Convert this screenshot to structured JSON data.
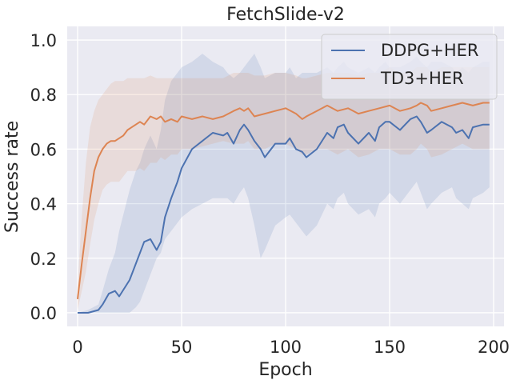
{
  "chart_data": {
    "type": "line",
    "title": "FetchSlide-v2",
    "xlabel": "Epoch",
    "ylabel": "Success rate",
    "xlim": [
      -5,
      205
    ],
    "ylim": [
      -0.05,
      1.05
    ],
    "xticks": [
      0,
      50,
      100,
      150,
      200
    ],
    "yticks": [
      0.0,
      0.2,
      0.4,
      0.6,
      0.8,
      1.0
    ],
    "xtick_labels": [
      "0",
      "50",
      "100",
      "150",
      "200"
    ],
    "ytick_labels": [
      "0.0",
      "0.2",
      "0.4",
      "0.6",
      "0.8",
      "1.0"
    ],
    "grid": true,
    "legend_position": "top-right",
    "series": [
      {
        "name": "DDPG+HER",
        "color": "#4c72b0",
        "x": [
          0,
          5,
          10,
          12,
          15,
          18,
          20,
          25,
          28,
          30,
          32,
          35,
          38,
          40,
          42,
          45,
          48,
          50,
          55,
          60,
          65,
          70,
          72,
          75,
          78,
          80,
          82,
          85,
          88,
          90,
          95,
          100,
          102,
          105,
          108,
          110,
          115,
          120,
          123,
          125,
          128,
          130,
          135,
          140,
          143,
          145,
          148,
          150,
          155,
          160,
          163,
          165,
          168,
          170,
          175,
          180,
          182,
          185,
          188,
          190,
          195,
          198
        ],
        "y": [
          0.0,
          0.0,
          0.01,
          0.03,
          0.07,
          0.08,
          0.06,
          0.12,
          0.18,
          0.22,
          0.26,
          0.27,
          0.23,
          0.26,
          0.35,
          0.42,
          0.48,
          0.53,
          0.6,
          0.63,
          0.66,
          0.65,
          0.66,
          0.62,
          0.67,
          0.69,
          0.67,
          0.63,
          0.6,
          0.57,
          0.62,
          0.62,
          0.64,
          0.6,
          0.59,
          0.57,
          0.6,
          0.66,
          0.64,
          0.68,
          0.69,
          0.66,
          0.62,
          0.66,
          0.63,
          0.68,
          0.7,
          0.7,
          0.67,
          0.71,
          0.72,
          0.7,
          0.66,
          0.67,
          0.7,
          0.68,
          0.66,
          0.67,
          0.64,
          0.68,
          0.69,
          0.69
        ],
        "lower": [
          0.0,
          0.0,
          0.0,
          0.0,
          0.0,
          0.0,
          0.0,
          0.0,
          0.02,
          0.04,
          0.08,
          0.14,
          0.2,
          0.22,
          0.27,
          0.3,
          0.33,
          0.35,
          0.38,
          0.4,
          0.42,
          0.42,
          0.42,
          0.4,
          0.44,
          0.46,
          0.42,
          0.32,
          0.2,
          0.23,
          0.32,
          0.35,
          0.36,
          0.33,
          0.3,
          0.28,
          0.32,
          0.4,
          0.38,
          0.42,
          0.44,
          0.4,
          0.36,
          0.38,
          0.35,
          0.4,
          0.42,
          0.44,
          0.4,
          0.45,
          0.48,
          0.44,
          0.38,
          0.4,
          0.44,
          0.46,
          0.42,
          0.4,
          0.38,
          0.42,
          0.44,
          0.46
        ],
        "upper": [
          0.0,
          0.01,
          0.03,
          0.08,
          0.16,
          0.22,
          0.3,
          0.45,
          0.52,
          0.55,
          0.6,
          0.65,
          0.6,
          0.67,
          0.78,
          0.85,
          0.88,
          0.9,
          0.92,
          0.95,
          0.92,
          0.9,
          0.88,
          0.86,
          0.88,
          0.9,
          0.92,
          0.95,
          0.9,
          0.86,
          0.88,
          0.88,
          0.9,
          0.86,
          0.88,
          0.88,
          0.88,
          0.9,
          0.88,
          0.9,
          0.92,
          0.9,
          0.88,
          0.9,
          0.88,
          0.9,
          0.92,
          0.9,
          0.9,
          0.92,
          0.94,
          0.92,
          0.9,
          0.92,
          0.92,
          0.9,
          0.88,
          0.9,
          0.88,
          0.9,
          0.92,
          0.92
        ]
      },
      {
        "name": "TD3+HER",
        "color": "#dd8452",
        "x": [
          0,
          2,
          4,
          6,
          8,
          10,
          12,
          14,
          16,
          18,
          20,
          22,
          24,
          26,
          28,
          30,
          32,
          35,
          38,
          40,
          42,
          45,
          48,
          50,
          55,
          60,
          65,
          70,
          75,
          78,
          80,
          82,
          85,
          90,
          95,
          100,
          105,
          108,
          110,
          115,
          120,
          125,
          130,
          135,
          140,
          145,
          150,
          155,
          160,
          163,
          165,
          168,
          170,
          175,
          180,
          185,
          190,
          195,
          198
        ],
        "y": [
          0.05,
          0.18,
          0.3,
          0.42,
          0.52,
          0.57,
          0.6,
          0.62,
          0.63,
          0.63,
          0.64,
          0.65,
          0.67,
          0.68,
          0.69,
          0.7,
          0.69,
          0.72,
          0.71,
          0.72,
          0.7,
          0.71,
          0.7,
          0.72,
          0.71,
          0.72,
          0.71,
          0.72,
          0.74,
          0.75,
          0.74,
          0.75,
          0.72,
          0.73,
          0.74,
          0.75,
          0.73,
          0.71,
          0.72,
          0.74,
          0.76,
          0.74,
          0.75,
          0.73,
          0.74,
          0.75,
          0.76,
          0.74,
          0.75,
          0.76,
          0.77,
          0.76,
          0.74,
          0.75,
          0.76,
          0.77,
          0.76,
          0.77,
          0.77
        ],
        "lower": [
          0.01,
          0.08,
          0.15,
          0.25,
          0.34,
          0.4,
          0.45,
          0.47,
          0.48,
          0.48,
          0.48,
          0.5,
          0.52,
          0.52,
          0.52,
          0.53,
          0.52,
          0.55,
          0.55,
          0.57,
          0.56,
          0.58,
          0.58,
          0.6,
          0.6,
          0.61,
          0.62,
          0.63,
          0.62,
          0.62,
          0.62,
          0.63,
          0.6,
          0.6,
          0.62,
          0.62,
          0.6,
          0.58,
          0.58,
          0.6,
          0.6,
          0.58,
          0.6,
          0.57,
          0.58,
          0.6,
          0.6,
          0.58,
          0.58,
          0.6,
          0.62,
          0.6,
          0.57,
          0.58,
          0.6,
          0.62,
          0.6,
          0.6,
          0.6
        ],
        "upper": [
          0.1,
          0.35,
          0.55,
          0.68,
          0.74,
          0.78,
          0.8,
          0.82,
          0.84,
          0.85,
          0.85,
          0.85,
          0.86,
          0.86,
          0.86,
          0.86,
          0.86,
          0.87,
          0.86,
          0.86,
          0.86,
          0.86,
          0.86,
          0.86,
          0.86,
          0.86,
          0.86,
          0.86,
          0.88,
          0.88,
          0.88,
          0.88,
          0.87,
          0.87,
          0.88,
          0.88,
          0.87,
          0.86,
          0.86,
          0.87,
          0.88,
          0.88,
          0.88,
          0.87,
          0.88,
          0.88,
          0.9,
          0.88,
          0.88,
          0.9,
          0.9,
          0.9,
          0.88,
          0.9,
          0.9,
          0.9,
          0.9,
          0.9,
          0.9
        ]
      }
    ]
  }
}
